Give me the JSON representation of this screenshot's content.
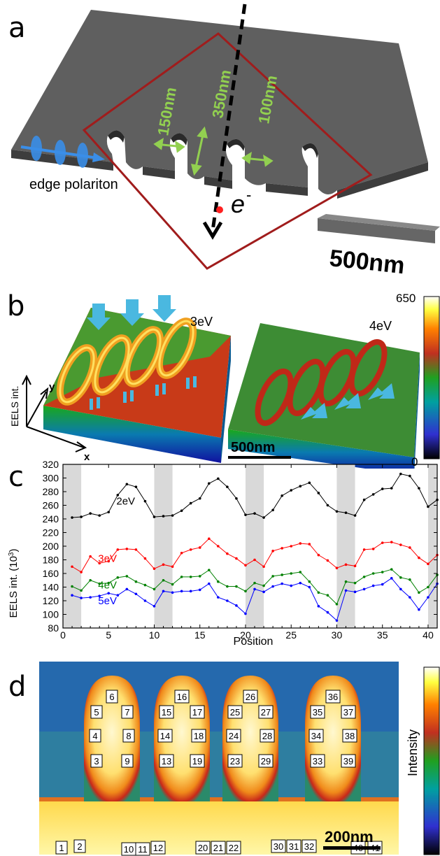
{
  "panels": {
    "a": {
      "label": "a",
      "dimensions": [
        "150nm",
        "350nm",
        "100nm"
      ],
      "edge_polariton": "edge polariton",
      "electron": "e",
      "electron_sup": "-",
      "scale_bar": "500nm"
    },
    "b": {
      "label": "b",
      "maps": [
        "3eV",
        "4eV"
      ],
      "axis_z": "EELS int.",
      "axis_y": "y",
      "axis_x": "x",
      "scale_bar": "500nm",
      "colorbar_max": "650",
      "colorbar_min": "0"
    },
    "c": {
      "label": "c",
      "xlabel": "Position",
      "ylabel": "EELS int. (10",
      "ylabel_sup": "3",
      "ylabel_end": ")"
    },
    "d": {
      "label": "d",
      "scale_bar": "200nm",
      "colorbar_label": "Intensity",
      "markers": [
        "1",
        "2",
        "3",
        "4",
        "5",
        "6",
        "7",
        "8",
        "9",
        "10",
        "11",
        "12",
        "13",
        "14",
        "15",
        "16",
        "17",
        "18",
        "19",
        "20",
        "21",
        "22",
        "23",
        "24",
        "25",
        "26",
        "27",
        "28",
        "29",
        "30",
        "31",
        "32",
        "33",
        "34",
        "35",
        "36",
        "37",
        "38",
        "39",
        "40",
        "41"
      ]
    }
  },
  "colors": {
    "slab": "#5f5f5f",
    "frame": "#a01c1c",
    "dimension": "#92d050",
    "polariton": "#3a8ee8",
    "s2eV": "#000000",
    "s3eV": "#ff0000",
    "s4eV": "#008000",
    "s5eV": "#0000ff"
  },
  "chart_data": {
    "type": "line",
    "xlabel": "Position",
    "ylabel": "EELS int. (10^3)",
    "xlim": [
      0,
      41
    ],
    "ylim": [
      80,
      320
    ],
    "xticks": [
      0,
      5,
      10,
      15,
      20,
      25,
      30,
      35,
      40
    ],
    "yticks": [
      80,
      100,
      120,
      140,
      160,
      180,
      200,
      220,
      240,
      260,
      280,
      300,
      320
    ],
    "shaded_ranges": [
      [
        0,
        2
      ],
      [
        10,
        12
      ],
      [
        20,
        22
      ],
      [
        30,
        32
      ],
      [
        40,
        41
      ]
    ],
    "x": [
      1,
      2,
      3,
      4,
      5,
      6,
      7,
      8,
      9,
      10,
      11,
      12,
      13,
      14,
      15,
      16,
      17,
      18,
      19,
      20,
      21,
      22,
      23,
      24,
      25,
      26,
      27,
      28,
      29,
      30,
      31,
      32,
      33,
      34,
      35,
      36,
      37,
      38,
      39,
      40,
      41
    ],
    "series": [
      {
        "name": "2eV",
        "color": "#000000",
        "values": [
          242,
          243,
          248,
          245,
          250,
          275,
          291,
          287,
          266,
          243,
          244,
          245,
          252,
          263,
          270,
          292,
          299,
          287,
          270,
          246,
          248,
          242,
          253,
          274,
          282,
          288,
          293,
          278,
          260,
          251,
          249,
          245,
          268,
          276,
          284,
          285,
          306,
          303,
          285,
          258,
          268
        ]
      },
      {
        "name": "3eV",
        "color": "#ff0000",
        "values": [
          170,
          162,
          185,
          175,
          178,
          195,
          196,
          195,
          182,
          167,
          173,
          170,
          190,
          195,
          198,
          211,
          200,
          189,
          182,
          172,
          180,
          170,
          193,
          197,
          200,
          204,
          203,
          187,
          179,
          168,
          173,
          171,
          195,
          196,
          205,
          206,
          202,
          198,
          183,
          174,
          187
        ]
      },
      {
        "name": "4eV",
        "color": "#008000",
        "values": [
          141,
          135,
          150,
          145,
          146,
          154,
          156,
          148,
          143,
          137,
          150,
          144,
          155,
          155,
          156,
          165,
          148,
          141,
          141,
          134,
          146,
          142,
          156,
          158,
          160,
          162,
          148,
          132,
          128,
          115,
          148,
          146,
          155,
          160,
          162,
          166,
          154,
          151,
          132,
          140,
          158
        ]
      },
      {
        "name": "5eV",
        "color": "#0000ff",
        "values": [
          128,
          124,
          125,
          127,
          131,
          128,
          137,
          130,
          120,
          112,
          134,
          132,
          134,
          134,
          136,
          145,
          125,
          120,
          113,
          101,
          137,
          133,
          141,
          145,
          142,
          146,
          140,
          112,
          103,
          91,
          135,
          133,
          137,
          142,
          144,
          153,
          137,
          125,
          107,
          125,
          145
        ]
      }
    ]
  }
}
